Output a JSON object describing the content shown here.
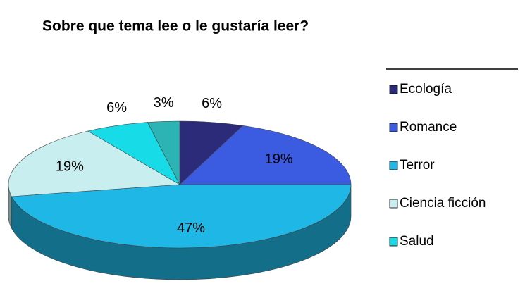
{
  "chart_data": {
    "type": "pie",
    "title": "Sobre que tema lee o le  gustaría leer?",
    "categories": [
      "Ecología",
      "Romance",
      "Terror",
      "Ciencia ficción",
      "Salud",
      null
    ],
    "values": [
      6,
      19,
      47,
      19,
      6,
      3
    ],
    "value_labels": [
      "6%",
      "19%",
      "47%",
      "19%",
      "6%",
      "3%"
    ],
    "colors": [
      "#2b2b7a",
      "#3b5be0",
      "#1fb8e6",
      "#c8eef0",
      "#17dbe6",
      "#2cb3b3"
    ],
    "legend": "right"
  }
}
